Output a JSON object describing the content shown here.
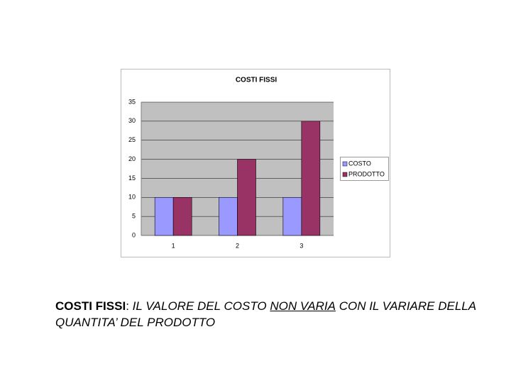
{
  "chart_data": {
    "type": "bar",
    "title": "COSTI FISSI",
    "categories": [
      "1",
      "2",
      "3"
    ],
    "series": [
      {
        "name": "COSTO",
        "color": "#9999ff",
        "values": [
          10,
          10,
          10
        ]
      },
      {
        "name": "PRODOTTO",
        "color": "#993366",
        "values": [
          10,
          20,
          30
        ]
      }
    ],
    "ylim": [
      0,
      35
    ],
    "yticks": [
      0,
      5,
      10,
      15,
      20,
      25,
      30,
      35
    ],
    "grid": true,
    "legend": "right"
  },
  "caption": {
    "parts": [
      "COSTI FISSI",
      ":",
      "IL VALORE DEL COSTO",
      "NON VARIA",
      "CON IL VARIARE DELLA QUANTITA’ DEL PRODOTTO"
    ]
  }
}
